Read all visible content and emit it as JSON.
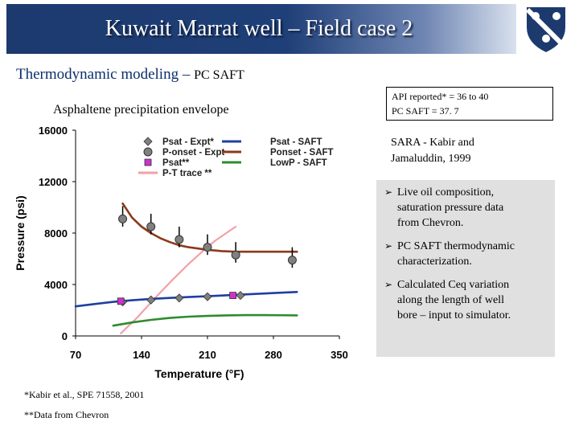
{
  "slide": {
    "title": "Kuwait Marrat well – Field case 2",
    "subtitle_main": "Thermodynamic modeling –",
    "subtitle_tail": "PC SAFT",
    "chart_caption": "Asphaltene precipitation envelope",
    "info_lines": [
      "API reported* = 36 to 40",
      "PC SAFT = 37. 7"
    ],
    "sara_line1": "SARA - Kabir and",
    "sara_line2": "Jamaluddin, 1999",
    "bullets": [
      [
        "Live oil composition,",
        "saturation pressure data",
        "from Chevron."
      ],
      [
        "PC SAFT thermodynamic",
        "characterization."
      ],
      [
        "Calculated Ceq variation",
        "along the length of well",
        "bore – input to simulator."
      ]
    ],
    "footnote1": "*Kabir et al., SPE 71558, 2001",
    "footnote2": "**Data from Chevron",
    "logo_icon": "university-shield-icon",
    "colors": {
      "header": "#1f3f78",
      "subtitle": "#0b2f6d",
      "bullet_bg": "#e0e0e0"
    }
  },
  "chart_data": {
    "type": "line",
    "xlabel": "Temperature (°F)",
    "ylabel": "Pressure (psi)",
    "xlim": [
      70,
      350
    ],
    "ylim": [
      0,
      16000
    ],
    "xticks": [
      70,
      140,
      210,
      280,
      350
    ],
    "yticks": [
      0,
      4000,
      8000,
      12000,
      16000
    ],
    "legend_position": "top-center",
    "series": [
      {
        "name": "Psat - Expt*",
        "kind": "scatter",
        "marker": "diamond",
        "color": "#7f7f7f",
        "x": [
          120,
          150,
          180,
          210,
          245
        ],
        "y": [
          2650,
          2800,
          2950,
          3050,
          3150
        ]
      },
      {
        "name": "P-onset - Expt",
        "kind": "scatter",
        "marker": "circle",
        "color": "#808080",
        "x": [
          120,
          150,
          180,
          210,
          240,
          300
        ],
        "y": [
          9100,
          8500,
          7500,
          6900,
          6300,
          5900
        ]
      },
      {
        "name": "Psat**",
        "kind": "scatter",
        "marker": "square",
        "color": "#cc33cc",
        "x": [
          118,
          237
        ],
        "y": [
          2700,
          3150
        ]
      },
      {
        "name": "P-T trace **",
        "kind": "line",
        "color": "#f2a0a8",
        "x": [
          118,
          135,
          155,
          172,
          190,
          205,
          218,
          230,
          240
        ],
        "y": [
          200,
          1400,
          3000,
          4300,
          5600,
          6600,
          7400,
          8000,
          8500
        ]
      },
      {
        "name": "Psat - SAFT",
        "kind": "line",
        "color": "#1f3f9f",
        "x": [
          70,
          90,
          110,
          130,
          150,
          170,
          190,
          210,
          230,
          250,
          270,
          290,
          305
        ],
        "y": [
          2300,
          2480,
          2650,
          2780,
          2880,
          2960,
          3030,
          3090,
          3160,
          3230,
          3300,
          3370,
          3420
        ]
      },
      {
        "name": "Ponset - SAFT",
        "kind": "line",
        "color": "#8b3a1a",
        "x": [
          120,
          130,
          140,
          150,
          160,
          170,
          180,
          190,
          200,
          210,
          225,
          240,
          260,
          280,
          305
        ],
        "y": [
          10300,
          9200,
          8500,
          8000,
          7600,
          7300,
          7050,
          6900,
          6800,
          6700,
          6600,
          6550,
          6550,
          6550,
          6550
        ]
      },
      {
        "name": "LowP - SAFT",
        "kind": "line",
        "color": "#2e8b2e",
        "x": [
          110,
          130,
          150,
          170,
          190,
          210,
          230,
          250,
          270,
          290,
          305
        ],
        "y": [
          800,
          1050,
          1250,
          1400,
          1500,
          1560,
          1600,
          1620,
          1620,
          1610,
          1600
        ]
      }
    ]
  }
}
